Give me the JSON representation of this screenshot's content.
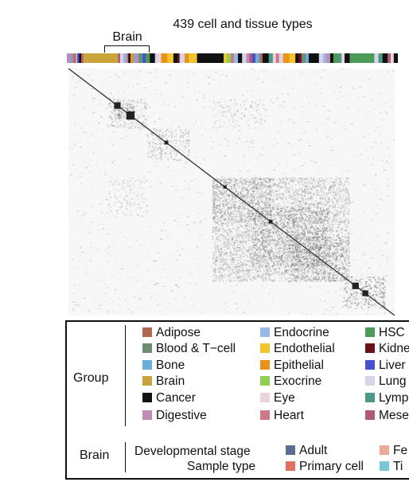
{
  "chart_data": {
    "type": "heatmap",
    "title": "439 cell and tissue types",
    "highlight_label": "Brain",
    "colors": {
      "Adipose": "#b06a52",
      "Blood & T-cell": "#6f8c74",
      "Bone": "#6baedb",
      "Brain": "#c9a43b",
      "Cancer": "#111111",
      "Digestive": "#c08db8",
      "Endocrine": "#99b9e8",
      "Endothelial": "#f2c52c",
      "Epithelial": "#e8921a",
      "Exocrine": "#8fd050",
      "Eye": "#ecd3d8",
      "Heart": "#d07888",
      "HSC": "#4a9a58",
      "Kidney": "#6b0f1a",
      "Liver": "#4a4fd0",
      "Lung": "#d8d4e8",
      "Lymph": "#4a9a88",
      "Mesench": "#b05a78"
    }
  },
  "legend": {
    "group_heading": "Group",
    "groups": [
      {
        "label": "Adipose",
        "color": "#b06a52"
      },
      {
        "label": "Blood & T−cell",
        "color": "#6f8c74"
      },
      {
        "label": "Bone",
        "color": "#6baedb"
      },
      {
        "label": "Brain",
        "color": "#c9a43b"
      },
      {
        "label": "Cancer",
        "color": "#111111"
      },
      {
        "label": "Digestive",
        "color": "#c08db8"
      },
      {
        "label": "Endocrine",
        "color": "#99b9e8"
      },
      {
        "label": "Endothelial",
        "color": "#f2c52c"
      },
      {
        "label": "Epithelial",
        "color": "#e8921a"
      },
      {
        "label": "Exocrine",
        "color": "#8fd050"
      },
      {
        "label": "Eye",
        "color": "#ecd3d8"
      },
      {
        "label": "Heart",
        "color": "#d07888"
      },
      {
        "label": "HSC",
        "color": "#4a9a58"
      },
      {
        "label": "Kidne",
        "color": "#6b0f1a"
      },
      {
        "label": "Liver",
        "color": "#4a4fd0"
      },
      {
        "label": "Lung",
        "color": "#d8d4e8"
      },
      {
        "label": "Lymp",
        "color": "#4a9a88"
      },
      {
        "label": "Mese",
        "color": "#b05a78"
      }
    ],
    "brain_heading": "Brain",
    "dev_stage_label": "Developmental stage",
    "sample_type_label": "Sample type",
    "dev_stage_items": [
      {
        "label": "Adult",
        "color": "#5a6d94"
      },
      {
        "label": "Fe",
        "color": "#eeaa98"
      }
    ],
    "sample_type_items": [
      {
        "label": "Primary cell",
        "color": "#e07060"
      },
      {
        "label": "Ti",
        "color": "#78c8d8"
      }
    ]
  }
}
